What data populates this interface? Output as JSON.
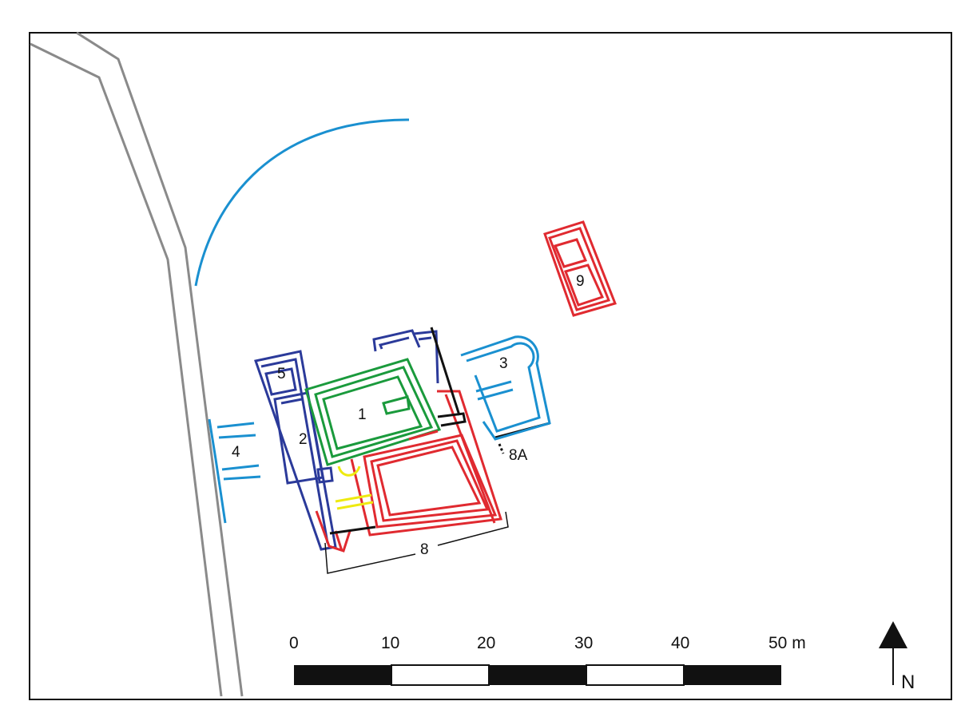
{
  "colors": {
    "background": "#ffffff",
    "frame": "#111111",
    "road": "#8a8a8a",
    "blue_dark": "#2b3a9a",
    "blue_light": "#1a90d0",
    "green": "#1a9a3c",
    "red": "#e02a30",
    "yellow": "#eeea10",
    "black": "#111111"
  },
  "structures": {
    "s1": "1",
    "s2": "2",
    "s3": "3",
    "s4": "4",
    "s5": "5",
    "s8": "8",
    "s8a": "8A",
    "s9": "9"
  },
  "scale_bar": {
    "ticks": [
      "0",
      "10",
      "20",
      "30",
      "40",
      "50 m"
    ]
  },
  "north_arrow": {
    "label": "N"
  }
}
